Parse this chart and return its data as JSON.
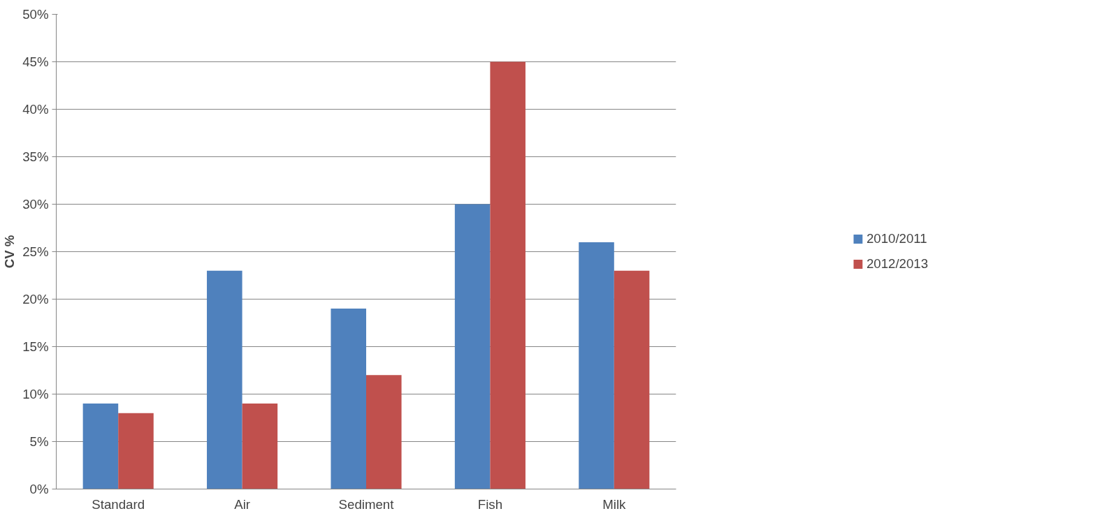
{
  "chart_data": {
    "type": "bar",
    "ylabel": "CV %",
    "categories": [
      "Standard",
      "Air",
      "Sediment",
      "Fish",
      "Milk"
    ],
    "series": [
      {
        "name": "2010/2011",
        "color": "#4f81bd",
        "values": [
          9,
          23,
          19,
          30,
          26
        ]
      },
      {
        "name": "2012/2013",
        "color": "#c0504d",
        "values": [
          8,
          9,
          12,
          45,
          23
        ]
      }
    ],
    "ylim": [
      0,
      50
    ],
    "yticks": [
      {
        "value": 0,
        "label": "0%"
      },
      {
        "value": 5,
        "label": "5%"
      },
      {
        "value": 10,
        "label": "10%"
      },
      {
        "value": 15,
        "label": "15%"
      },
      {
        "value": 20,
        "label": "20%"
      },
      {
        "value": 25,
        "label": "25%"
      },
      {
        "value": 30,
        "label": "30%"
      },
      {
        "value": 35,
        "label": "35%"
      },
      {
        "value": 40,
        "label": "40%"
      },
      {
        "value": 45,
        "label": "45%"
      },
      {
        "value": 50,
        "label": "50%"
      }
    ],
    "grid": "y",
    "legend": "right"
  }
}
